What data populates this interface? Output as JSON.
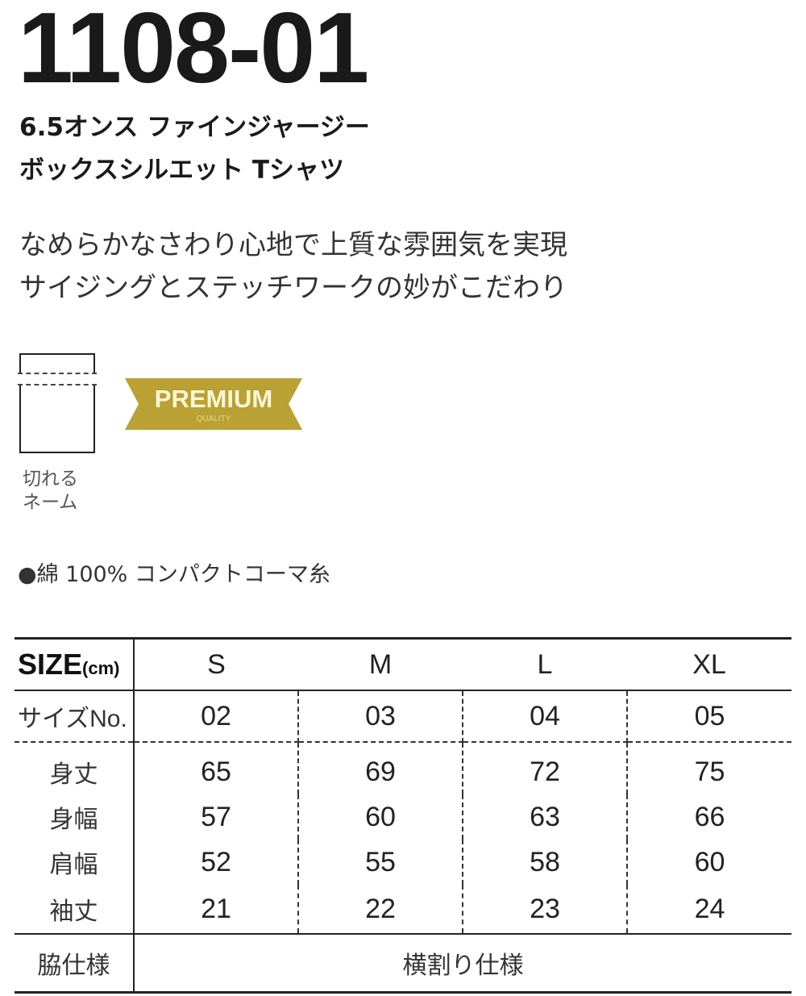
{
  "product": {
    "code": "1108-01",
    "name_line1": "6.5オンス ファインジャージー",
    "name_line2": "ボックスシルエット Tシャツ",
    "desc_line1": "なめらかなさわり心地で上質な雰囲気を実現",
    "desc_line2": "サイジングとステッチワークの妙がこだわり"
  },
  "features": {
    "tag_label_line1": "切れる",
    "tag_label_line2": "ネーム",
    "tag_icon": "tear-away-label-icon",
    "badge_main": "PREMIUM",
    "badge_sub": "QUALITY",
    "badge_color": "#b9a133",
    "material": "●綿 100% コンパクトコーマ糸"
  },
  "size_table": {
    "header_label": "SIZE",
    "header_unit": "(cm)",
    "sizes": [
      "S",
      "M",
      "L",
      "XL"
    ],
    "size_no_label": "サイズNo.",
    "size_no": [
      "02",
      "03",
      "04",
      "05"
    ],
    "rows": [
      {
        "label": "身丈",
        "values": [
          "65",
          "69",
          "72",
          "75"
        ]
      },
      {
        "label": "身幅",
        "values": [
          "57",
          "60",
          "63",
          "66"
        ]
      },
      {
        "label": "肩幅",
        "values": [
          "52",
          "55",
          "58",
          "60"
        ]
      },
      {
        "label": "袖丈",
        "values": [
          "21",
          "22",
          "23",
          "24"
        ]
      }
    ],
    "side_label": "脇仕様",
    "side_value": "横割り仕様"
  }
}
